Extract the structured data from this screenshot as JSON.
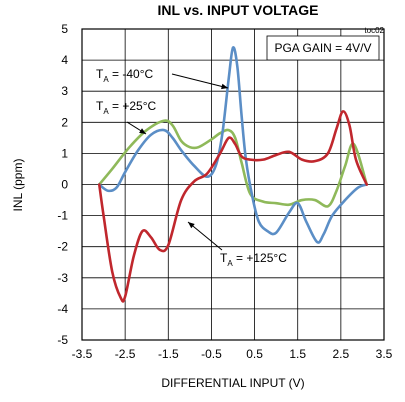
{
  "chart_data": {
    "type": "line",
    "title": "INL vs. INPUT VOLTAGE",
    "code": "toc02",
    "xlabel": "DIFFERENTIAL INPUT (V)",
    "ylabel": "INL (ppm)",
    "xlim": [
      -3.5,
      3.5
    ],
    "ylim": [
      -5,
      5
    ],
    "xticks": [
      "-3.5",
      "-2.5",
      "-1.5",
      "-0.5",
      "0.5",
      "1.5",
      "2.5",
      "3.5"
    ],
    "yticks": [
      "5",
      "4",
      "3",
      "2",
      "1",
      "0",
      "-1",
      "-2",
      "-3",
      "-4",
      "-5"
    ],
    "grid": true,
    "annotation_gain": "PGA GAIN = 4V/V",
    "series": [
      {
        "name": "-40°C",
        "color": "#5b8ec6",
        "x": [
          -3.1,
          -2.9,
          -2.7,
          -2.5,
          -2.2,
          -1.9,
          -1.6,
          -1.4,
          -1.2,
          -0.9,
          -0.6,
          -0.4,
          -0.25,
          -0.1,
          0.0,
          0.1,
          0.2,
          0.3,
          0.45,
          0.6,
          0.8,
          1.0,
          1.3,
          1.5,
          1.7,
          1.95,
          2.1,
          2.3,
          2.6,
          2.9,
          3.1
        ],
        "y": [
          0.0,
          -0.2,
          -0.1,
          0.4,
          1.1,
          1.6,
          1.75,
          1.5,
          1.1,
          0.6,
          0.25,
          0.6,
          1.6,
          3.4,
          4.4,
          3.8,
          2.2,
          0.8,
          -0.4,
          -1.2,
          -1.5,
          -1.55,
          -0.9,
          -0.6,
          -1.2,
          -1.85,
          -1.6,
          -1.0,
          -0.5,
          -0.1,
          0.0
        ]
      },
      {
        "name": "+25°C",
        "color": "#8fb95a",
        "x": [
          -3.1,
          -2.8,
          -2.4,
          -2.0,
          -1.6,
          -1.4,
          -1.2,
          -1.0,
          -0.8,
          -0.5,
          -0.3,
          -0.1,
          0.05,
          0.2,
          0.4,
          0.7,
          1.0,
          1.3,
          1.6,
          1.9,
          2.2,
          2.4,
          2.6,
          2.8,
          3.1
        ],
        "y": [
          0.0,
          0.5,
          1.2,
          1.75,
          2.05,
          1.9,
          1.4,
          1.2,
          1.2,
          1.45,
          1.65,
          1.75,
          1.5,
          0.7,
          -0.3,
          -0.55,
          -0.6,
          -0.65,
          -0.5,
          -0.5,
          -0.7,
          -0.2,
          0.6,
          1.3,
          0.0
        ]
      },
      {
        "name": "+125°C",
        "color": "#c0272d",
        "x": [
          -3.1,
          -3.0,
          -2.8,
          -2.6,
          -2.5,
          -2.3,
          -2.1,
          -1.9,
          -1.7,
          -1.5,
          -1.2,
          -0.9,
          -0.6,
          -0.3,
          -0.1,
          0.05,
          0.2,
          0.4,
          0.7,
          1.0,
          1.3,
          1.6,
          1.9,
          2.2,
          2.4,
          2.55,
          2.7,
          2.85,
          3.1
        ],
        "y": [
          0.0,
          -1.0,
          -2.8,
          -3.65,
          -3.6,
          -2.3,
          -1.5,
          -1.7,
          -2.1,
          -1.95,
          -0.5,
          0.1,
          0.35,
          1.0,
          1.5,
          1.3,
          0.9,
          0.8,
          0.8,
          0.95,
          1.05,
          0.8,
          0.75,
          1.0,
          1.8,
          2.35,
          1.9,
          0.8,
          0.0
        ]
      }
    ],
    "labels": [
      {
        "series": "-40°C",
        "prefix": "T",
        "sub": "A",
        "value": " = -40°C"
      },
      {
        "series": "+25°C",
        "prefix": "T",
        "sub": "A",
        "value": " = +25°C"
      },
      {
        "series": "+125°C",
        "prefix": "T",
        "sub": "A",
        "value": " = +125°C"
      }
    ]
  }
}
